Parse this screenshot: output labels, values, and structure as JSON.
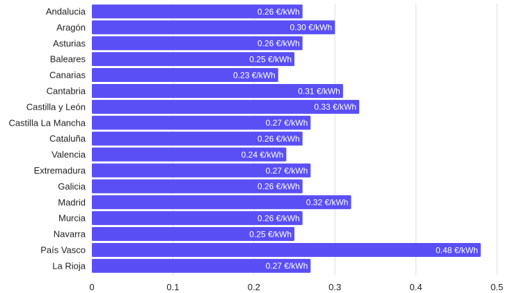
{
  "chart_data": {
    "type": "bar",
    "orientation": "horizontal",
    "title": "",
    "xlabel": "",
    "ylabel": "",
    "categories": [
      "Andalucia",
      "Aragón",
      "Asturias",
      "Baleares",
      "Canarias",
      "Cantabria",
      "Castilla y León",
      "Castilla La Mancha",
      "Cataluña",
      "Valencia",
      "Extremadura",
      "Galicia",
      "Madrid",
      "Murcia",
      "Navarra",
      "País Vasco",
      "La Rioja"
    ],
    "values": [
      0.26,
      0.3,
      0.26,
      0.25,
      0.23,
      0.31,
      0.33,
      0.27,
      0.26,
      0.24,
      0.27,
      0.26,
      0.32,
      0.26,
      0.25,
      0.48,
      0.27
    ],
    "data_labels": [
      "0.26 €/kWh",
      "0.30 €/kWh",
      "0.26 €/kWh",
      "0.25 €/kWh",
      "0.23 €/kWh",
      "0.31 €/kWh",
      "0.33 €/kWh",
      "0.27 €/kWh",
      "0.26 €/kWh",
      "0.24 €/kWh",
      "0.27 €/kWh",
      "0.26 €/kWh",
      "0.32 €/kWh",
      "0.26 €/kWh",
      "0.25 €/kWh",
      "0.48 €/kWh",
      "0.27 €/kWh"
    ],
    "xlim": [
      0,
      0.5
    ],
    "x_ticks": [
      0,
      0.1,
      0.2,
      0.3,
      0.4,
      0.5
    ],
    "x_tick_labels": [
      "0",
      "0.1",
      "0.2",
      "0.3",
      "0.4",
      "0.5"
    ],
    "grid": "vertical",
    "legend": "none",
    "colors": {
      "bar": "#5a4ff5",
      "grid": "#dddddd",
      "label": "#222222",
      "data_label": "#ffffff"
    }
  }
}
